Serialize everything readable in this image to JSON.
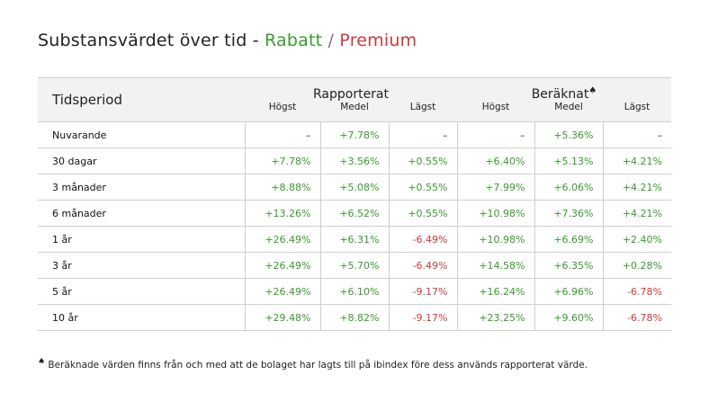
{
  "title": {
    "prefix": "Substansvärdet över tid - ",
    "discount": "Rabatt",
    "separator": " / ",
    "premium": "Premium"
  },
  "colors": {
    "positive": "#3a9a2e",
    "negative": "#cc3a3a"
  },
  "table": {
    "period_header": "Tidsperiod",
    "groups": [
      {
        "label": "Rapporterat",
        "marker": ""
      },
      {
        "label": "Beräknat",
        "marker": "♠"
      }
    ],
    "subheaders": [
      "Högst",
      "Medel",
      "Lägst",
      "Högst",
      "Medel",
      "Lägst"
    ],
    "rows": [
      {
        "period": "Nuvarande",
        "cells": [
          {
            "v": "–",
            "s": "neu"
          },
          {
            "v": "+7.78%",
            "s": "pos"
          },
          {
            "v": "–",
            "s": "neu"
          },
          {
            "v": "–",
            "s": "neu"
          },
          {
            "v": "+5.36%",
            "s": "pos"
          },
          {
            "v": "–",
            "s": "neu"
          }
        ]
      },
      {
        "period": "30 dagar",
        "cells": [
          {
            "v": "+7.78%",
            "s": "pos"
          },
          {
            "v": "+3.56%",
            "s": "pos"
          },
          {
            "v": "+0.55%",
            "s": "pos"
          },
          {
            "v": "+6.40%",
            "s": "pos"
          },
          {
            "v": "+5.13%",
            "s": "pos"
          },
          {
            "v": "+4.21%",
            "s": "pos"
          }
        ]
      },
      {
        "period": "3 månader",
        "cells": [
          {
            "v": "+8.88%",
            "s": "pos"
          },
          {
            "v": "+5.08%",
            "s": "pos"
          },
          {
            "v": "+0.55%",
            "s": "pos"
          },
          {
            "v": "+7.99%",
            "s": "pos"
          },
          {
            "v": "+6.06%",
            "s": "pos"
          },
          {
            "v": "+4.21%",
            "s": "pos"
          }
        ]
      },
      {
        "period": "6 månader",
        "cells": [
          {
            "v": "+13.26%",
            "s": "pos"
          },
          {
            "v": "+6.52%",
            "s": "pos"
          },
          {
            "v": "+0.55%",
            "s": "pos"
          },
          {
            "v": "+10.98%",
            "s": "pos"
          },
          {
            "v": "+7.36%",
            "s": "pos"
          },
          {
            "v": "+4.21%",
            "s": "pos"
          }
        ]
      },
      {
        "period": "1 år",
        "cells": [
          {
            "v": "+26.49%",
            "s": "pos"
          },
          {
            "v": "+6.31%",
            "s": "pos"
          },
          {
            "v": "-6.49%",
            "s": "neg"
          },
          {
            "v": "+10.98%",
            "s": "pos"
          },
          {
            "v": "+6.69%",
            "s": "pos"
          },
          {
            "v": "+2.40%",
            "s": "pos"
          }
        ]
      },
      {
        "period": "3 år",
        "cells": [
          {
            "v": "+26.49%",
            "s": "pos"
          },
          {
            "v": "+5.70%",
            "s": "pos"
          },
          {
            "v": "-6.49%",
            "s": "neg"
          },
          {
            "v": "+14.58%",
            "s": "pos"
          },
          {
            "v": "+6.35%",
            "s": "pos"
          },
          {
            "v": "+0.28%",
            "s": "pos"
          }
        ]
      },
      {
        "period": "5 år",
        "cells": [
          {
            "v": "+26.49%",
            "s": "pos"
          },
          {
            "v": "+6.10%",
            "s": "pos"
          },
          {
            "v": "-9.17%",
            "s": "neg"
          },
          {
            "v": "+16.24%",
            "s": "pos"
          },
          {
            "v": "+6.96%",
            "s": "pos"
          },
          {
            "v": "-6.78%",
            "s": "neg"
          }
        ]
      },
      {
        "period": "10 år",
        "cells": [
          {
            "v": "+29.48%",
            "s": "pos"
          },
          {
            "v": "+8.82%",
            "s": "pos"
          },
          {
            "v": "-9.17%",
            "s": "neg"
          },
          {
            "v": "+23.25%",
            "s": "pos"
          },
          {
            "v": "+9.60%",
            "s": "pos"
          },
          {
            "v": "-6.78%",
            "s": "neg"
          }
        ]
      }
    ]
  },
  "footnote": {
    "marker": "♠",
    "text": " Beräknade värden finns från och med att de bolaget har lagts till på ibindex före dess används rapporterat värde."
  }
}
